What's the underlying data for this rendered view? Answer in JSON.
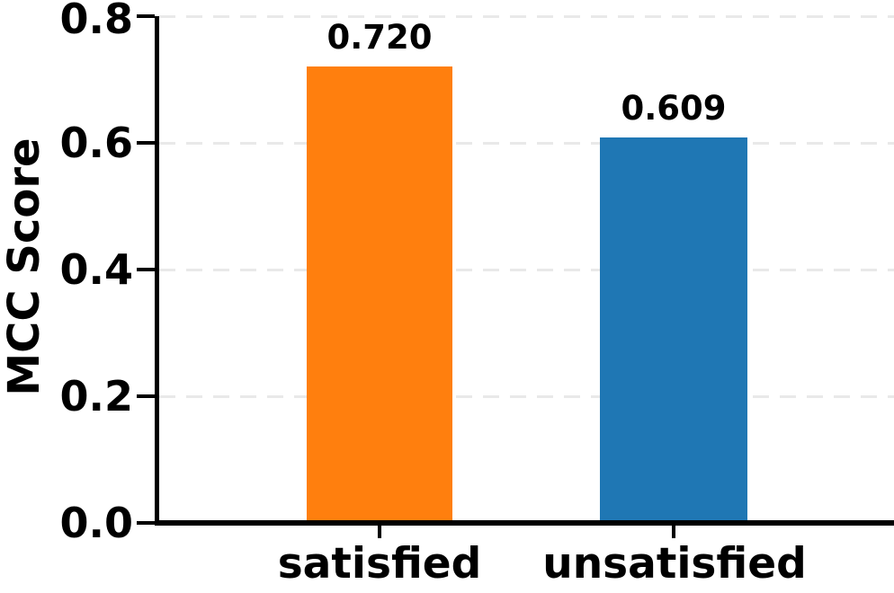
{
  "chart_data": {
    "type": "bar",
    "title": "",
    "xlabel": "",
    "ylabel": "MCC Score",
    "categories": [
      "satisfied",
      "unsatisfied"
    ],
    "values": [
      0.72,
      0.609
    ],
    "value_labels": [
      "0.720",
      "0.609"
    ],
    "bar_colors": [
      "#ff7f0e",
      "#1f77b4"
    ],
    "ylim": [
      0.0,
      0.8
    ],
    "ytick_labels": [
      "0.0",
      "0.2",
      "0.4",
      "0.6",
      "0.8"
    ],
    "grid": "horizontal-dashed",
    "gridline_color": "#e9e9e9",
    "legend": "none",
    "background_color": "#ffffff",
    "text_color": "#000000",
    "spine_color": "#000000"
  }
}
